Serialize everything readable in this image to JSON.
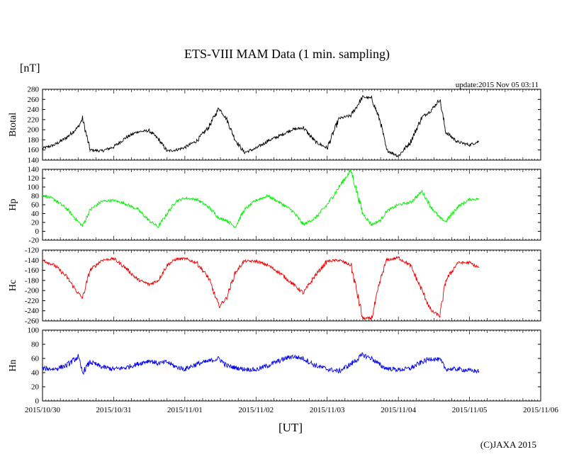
{
  "title": "ETS-VIII MAM Data (1 min. sampling)",
  "y_unit": "[nT]",
  "x_unit": "[UT]",
  "update_text": "update:2015 Nov 05 03:11",
  "copyright": "(C)JAXA 2015",
  "chart_data": {
    "type": "line",
    "x_range": [
      "2015/10/30 00:00",
      "2015/11/06 00:00"
    ],
    "x_ticks": [
      "2015/10/30",
      "2015/10/31",
      "2015/11/01",
      "2015/11/02",
      "2015/11/03",
      "2015/11/04",
      "2015/11/05",
      "2015/11/06"
    ],
    "x": [
      "2015/10/30 00:00",
      "2015/10/30 04:00",
      "2015/10/30 08:00",
      "2015/10/30 12:00",
      "2015/10/30 13:30",
      "2015/10/30 16:00",
      "2015/10/30 20:00",
      "2015/10/31 00:00",
      "2015/10/31 04:00",
      "2015/10/31 08:00",
      "2015/10/31 12:00",
      "2015/10/31 15:00",
      "2015/10/31 18:00",
      "2015/10/31 21:00",
      "2015/11/01 00:00",
      "2015/11/01 04:00",
      "2015/11/01 08:00",
      "2015/11/01 11:30",
      "2015/11/01 14:00",
      "2015/11/01 17:00",
      "2015/11/01 20:00",
      "2015/11/02 00:00",
      "2015/11/02 04:00",
      "2015/11/02 08:00",
      "2015/11/02 12:00",
      "2015/11/02 16:00",
      "2015/11/02 20:00",
      "2015/11/03 00:00",
      "2015/11/03 04:00",
      "2015/11/03 08:00",
      "2015/11/03 12:00",
      "2015/11/03 15:00",
      "2015/11/03 18:00",
      "2015/11/03 20:00",
      "2015/11/04 00:00",
      "2015/11/04 04:00",
      "2015/11/04 08:00",
      "2015/11/04 11:00",
      "2015/11/04 14:00",
      "2015/11/04 16:00",
      "2015/11/04 20:00",
      "2015/11/05 00:00",
      "2015/11/05 03:11"
    ],
    "panels": [
      {
        "ylabel": "Btotal",
        "ylim": [
          140,
          280
        ],
        "yticks": [
          "280",
          "260",
          "240",
          "220",
          "200",
          "180",
          "160",
          "140"
        ],
        "color": "#000000",
        "values": [
          163,
          170,
          184,
          205,
          222,
          160,
          158,
          166,
          184,
          196,
          198,
          182,
          158,
          160,
          165,
          178,
          205,
          243,
          222,
          180,
          155,
          163,
          178,
          188,
          200,
          204,
          176,
          164,
          222,
          228,
          265,
          262,
          215,
          160,
          148,
          175,
          225,
          238,
          260,
          195,
          176,
          170,
          177
        ],
        "noise": 2.5
      },
      {
        "ylabel": "Hp",
        "ylim": [
          -20,
          140
        ],
        "yticks": [
          "140",
          "120",
          "100",
          "80",
          "60",
          "40",
          "20",
          "0",
          "-20"
        ],
        "color": "#00ee00",
        "values": [
          82,
          72,
          52,
          22,
          12,
          48,
          68,
          70,
          62,
          50,
          24,
          10,
          40,
          68,
          75,
          72,
          55,
          30,
          25,
          10,
          48,
          70,
          80,
          65,
          48,
          15,
          30,
          60,
          100,
          138,
          40,
          15,
          25,
          45,
          60,
          65,
          90,
          55,
          30,
          22,
          55,
          72,
          73
        ],
        "noise": 2.5
      },
      {
        "ylabel": "Hc",
        "ylim": [
          -260,
          -120
        ],
        "yticks": [
          "-120",
          "-140",
          "-160",
          "-180",
          "-200",
          "-220",
          "-240",
          "-260"
        ],
        "color": "#ee0000",
        "values": [
          -140,
          -150,
          -172,
          -205,
          -215,
          -160,
          -140,
          -137,
          -155,
          -178,
          -188,
          -180,
          -150,
          -138,
          -137,
          -145,
          -175,
          -232,
          -215,
          -165,
          -142,
          -142,
          -150,
          -165,
          -185,
          -205,
          -170,
          -142,
          -140,
          -150,
          -255,
          -255,
          -178,
          -140,
          -135,
          -150,
          -200,
          -240,
          -250,
          -180,
          -145,
          -145,
          -155
        ],
        "noise": 2.5
      },
      {
        "ylabel": "Hn",
        "ylim": [
          0,
          100
        ],
        "yticks": [
          "100",
          "80",
          "60",
          "40",
          "20",
          "0"
        ],
        "color": "#0000ee",
        "values": [
          46,
          45,
          50,
          62,
          40,
          55,
          48,
          45,
          47,
          52,
          57,
          53,
          55,
          48,
          45,
          52,
          56,
          60,
          50,
          47,
          45,
          44,
          50,
          57,
          63,
          60,
          50,
          45,
          42,
          52,
          65,
          60,
          50,
          46,
          44,
          46,
          55,
          60,
          58,
          45,
          45,
          43,
          42
        ],
        "noise": 3
      }
    ]
  }
}
